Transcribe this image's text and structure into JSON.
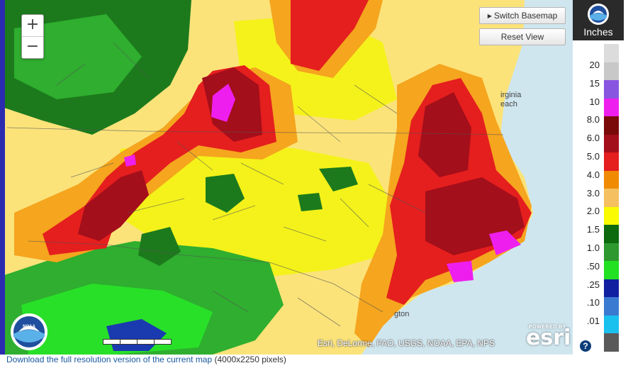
{
  "map": {
    "zoom_in": "+",
    "zoom_out": "−",
    "switch_basemap": "Switch Basemap",
    "reset_view": "Reset View",
    "attribution": "Esri, DeLorme, FAO, USGS, NOAA, EPA, NPS",
    "esri_powered": "POWERED BY",
    "esri_logo": "esri",
    "city_label_1a": "irginia",
    "city_label_1b": "each",
    "city_label_2": "gton",
    "noaa_logo": "NOAA",
    "colors": {
      "ocean": "#cfe6ef",
      "light_yellow": "#fbe37a",
      "yellow": "#f4f21a",
      "orange": "#f5a51e",
      "red": "#e51e1e",
      "dark_red": "#a30f1a",
      "magenta": "#ee1fee",
      "dark_green": "#1c7a1c",
      "green": "#2fae2f",
      "bright_green": "#28e028",
      "blue": "#1a3ab0"
    }
  },
  "legend": {
    "unit": "Inches",
    "labels": [
      "20",
      "15",
      "10",
      "8.0",
      "6.0",
      "5.0",
      "4.0",
      "3.0",
      "2.0",
      "1.5",
      "1.0",
      ".50",
      ".25",
      ".10",
      ".01"
    ],
    "swatch_colors": [
      "#dcdcdc",
      "#c8c8c8",
      "#8855e0",
      "#ee1fee",
      "#7a0a0a",
      "#a30f1a",
      "#e51e1e",
      "#f08a00",
      "#f5c060",
      "#fafa00",
      "#0d6a0d",
      "#2e992e",
      "#22e022",
      "#1020a0",
      "#3a7ad0",
      "#1ac0ee",
      "#5a5a5a"
    ],
    "help": "?"
  },
  "footer": {
    "link": "Download the full resolution version of the current map",
    "suffix": " (4000x2250 pixels)"
  }
}
